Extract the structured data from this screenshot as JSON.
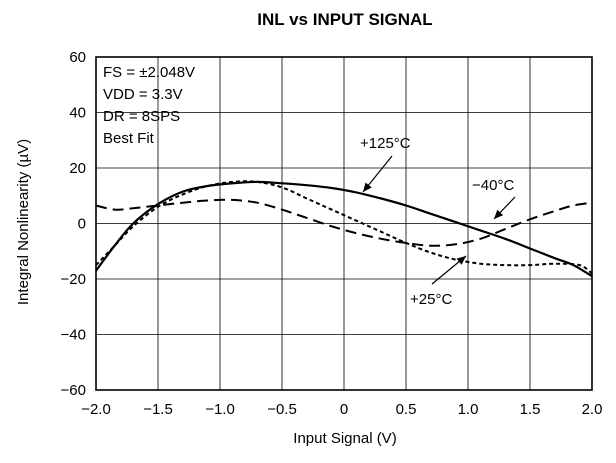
{
  "chart_data": {
    "type": "line",
    "title": "INL vs INPUT SIGNAL",
    "xlabel": "Input Signal (V)",
    "ylabel": "Integral Nonlinearity (µV)",
    "xlim": [
      -2.0,
      2.0
    ],
    "ylim": [
      -60,
      60
    ],
    "x_ticks": [
      -2.0,
      -1.5,
      -1.0,
      -0.5,
      0,
      0.5,
      1.0,
      1.5,
      2.0
    ],
    "x_tick_labels": [
      "−2.0",
      "−1.5",
      "−1.0",
      "−0.5",
      "0",
      "0.5",
      "1.0",
      "1.5",
      "2.0"
    ],
    "y_ticks": [
      -60,
      -40,
      -20,
      0,
      20,
      40,
      60
    ],
    "y_tick_labels": [
      "−60",
      "−40",
      "−20",
      "0",
      "20",
      "40",
      "60"
    ],
    "grid": true,
    "conditions": [
      "FS = ±2.048V",
      "VDD = 3.3V",
      "DR = 8SPS",
      "Best Fit"
    ],
    "series": [
      {
        "name": "+125°C",
        "style": "solid",
        "color": "#000000",
        "x": [
          -2.0,
          -1.85,
          -1.7,
          -1.5,
          -1.3,
          -1.1,
          -0.9,
          -0.7,
          -0.5,
          -0.3,
          -0.1,
          0.1,
          0.3,
          0.5,
          0.7,
          0.9,
          1.1,
          1.3,
          1.5,
          1.7,
          1.85,
          2.0
        ],
        "y": [
          -17,
          -8,
          0,
          7,
          11.5,
          13.5,
          14.5,
          15,
          14.5,
          13.8,
          12.8,
          11.2,
          9,
          6.5,
          3.5,
          0.5,
          -2.5,
          -5.5,
          -9,
          -12.5,
          -15,
          -19
        ]
      },
      {
        "name": "+25°C",
        "style": "short-dash",
        "color": "#000000",
        "x": [
          -2.0,
          -1.85,
          -1.7,
          -1.5,
          -1.3,
          -1.1,
          -0.9,
          -0.7,
          -0.5,
          -0.3,
          -0.1,
          0.1,
          0.3,
          0.5,
          0.7,
          0.9,
          1.1,
          1.3,
          1.5,
          1.7,
          1.9,
          2.0
        ],
        "y": [
          -15,
          -8,
          -1,
          6,
          10.5,
          13.5,
          15,
          15,
          13,
          9,
          5,
          1,
          -3,
          -7,
          -10.5,
          -13,
          -14.5,
          -15,
          -15,
          -14.5,
          -15,
          -18
        ]
      },
      {
        "name": "−40°C",
        "style": "long-dash",
        "color": "#000000",
        "x": [
          -2.0,
          -1.85,
          -1.7,
          -1.5,
          -1.3,
          -1.1,
          -0.9,
          -0.7,
          -0.5,
          -0.3,
          -0.1,
          0.1,
          0.3,
          0.5,
          0.7,
          0.9,
          1.1,
          1.3,
          1.5,
          1.7,
          1.85,
          2.0
        ],
        "y": [
          6.5,
          5,
          5.5,
          6.5,
          7.5,
          8.3,
          8.5,
          7.5,
          5,
          2,
          -1,
          -3.5,
          -5.5,
          -7,
          -8,
          -7.5,
          -5.5,
          -2,
          1.5,
          4.5,
          6.5,
          7.5
        ]
      }
    ],
    "annotations": [
      {
        "text": "+125°C",
        "series": 0
      },
      {
        "text": "+25°C",
        "series": 1
      },
      {
        "text": "−40°C",
        "series": 2
      }
    ]
  }
}
